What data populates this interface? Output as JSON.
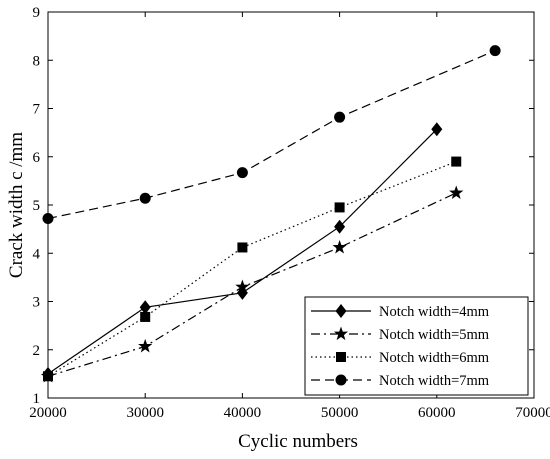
{
  "chart_data": {
    "type": "line",
    "title": "",
    "xlabel": "Cyclic numbers",
    "ylabel": "Crack width c /mm",
    "xlim": [
      20000,
      70000
    ],
    "ylim": [
      1,
      9
    ],
    "xticks": [
      20000,
      30000,
      40000,
      50000,
      60000,
      70000
    ],
    "yticks": [
      1,
      2,
      3,
      4,
      5,
      6,
      7,
      8,
      9
    ],
    "grid": false,
    "legend_position": "bottom-right",
    "series": [
      {
        "name": "Notch width=4mm",
        "line_style": "solid",
        "marker": "diamond",
        "x": [
          20000,
          30000,
          40000,
          50000,
          60000
        ],
        "y": [
          1.5,
          2.88,
          3.18,
          4.55,
          6.57
        ]
      },
      {
        "name": "Notch width=5mm",
        "line_style": "dashdot",
        "marker": "star",
        "x": [
          20000,
          30000,
          40000,
          50000,
          62000
        ],
        "y": [
          1.45,
          2.07,
          3.3,
          4.12,
          5.25
        ]
      },
      {
        "name": "Notch width=6mm",
        "line_style": "dotted",
        "marker": "square",
        "x": [
          20000,
          30000,
          40000,
          50000,
          62000
        ],
        "y": [
          1.45,
          2.68,
          4.12,
          4.95,
          5.9
        ]
      },
      {
        "name": "Notch width=7mm",
        "line_style": "dashed",
        "marker": "circle",
        "x": [
          20000,
          30000,
          40000,
          50000,
          66000
        ],
        "y": [
          4.72,
          5.14,
          5.67,
          6.82,
          8.2
        ]
      }
    ]
  }
}
